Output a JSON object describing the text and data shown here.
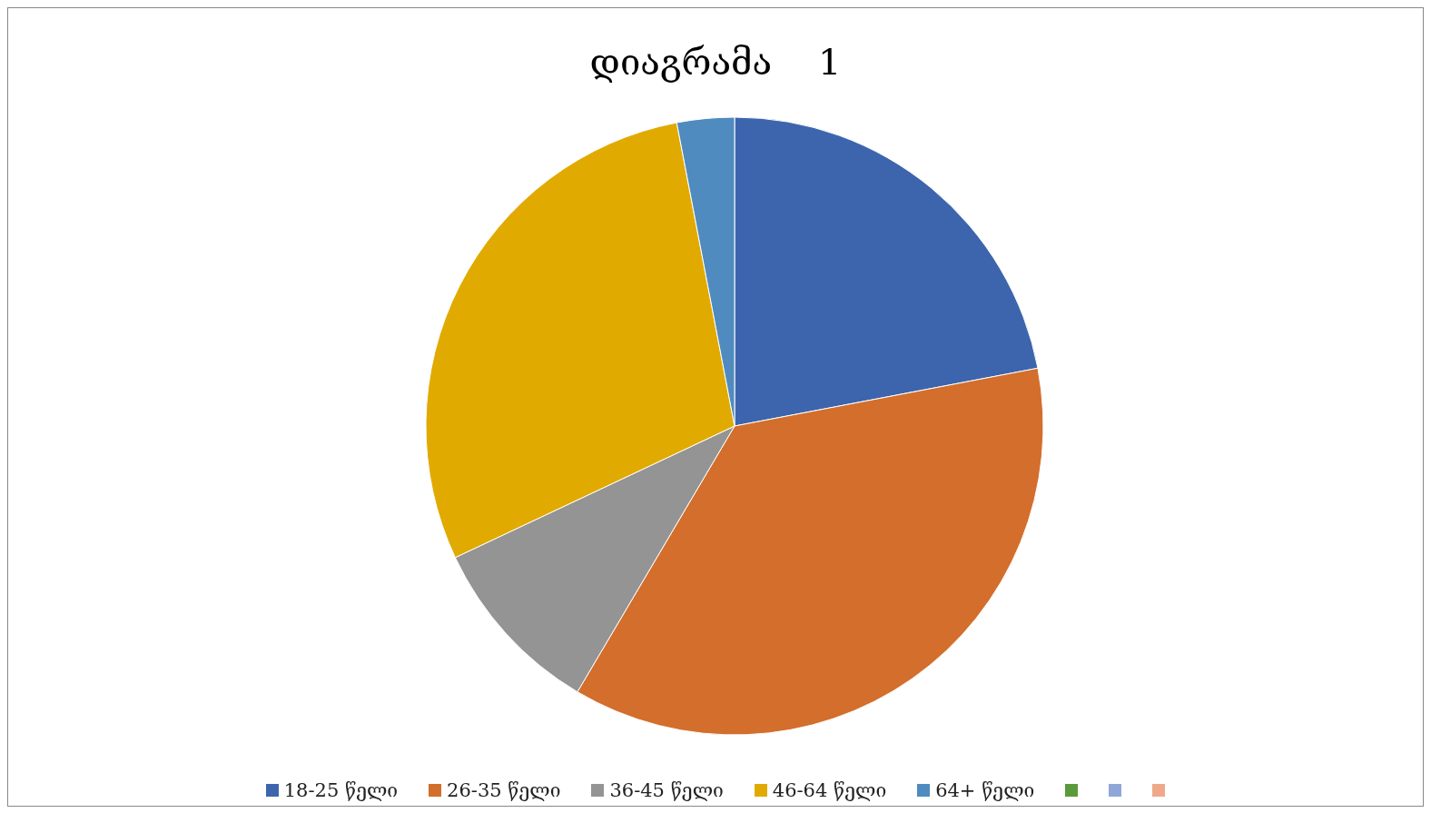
{
  "chart_data": {
    "type": "pie",
    "title": "დიაგრამა    1",
    "categories": [
      "18-25  წელი",
      "26-35 წელი",
      "36-45 წელი",
      "46-64 წელი",
      "64+  წელი",
      null,
      null,
      null
    ],
    "values": [
      22,
      36.5,
      9.5,
      29,
      3,
      0,
      0,
      0
    ],
    "colors": [
      "#3d65ad",
      "#d36e2c",
      "#949494",
      "#e1aa00",
      "#4f8bbf",
      "#5a9a3a",
      "#8fa7d8",
      "#f0a88a"
    ],
    "legend": "bottom"
  }
}
